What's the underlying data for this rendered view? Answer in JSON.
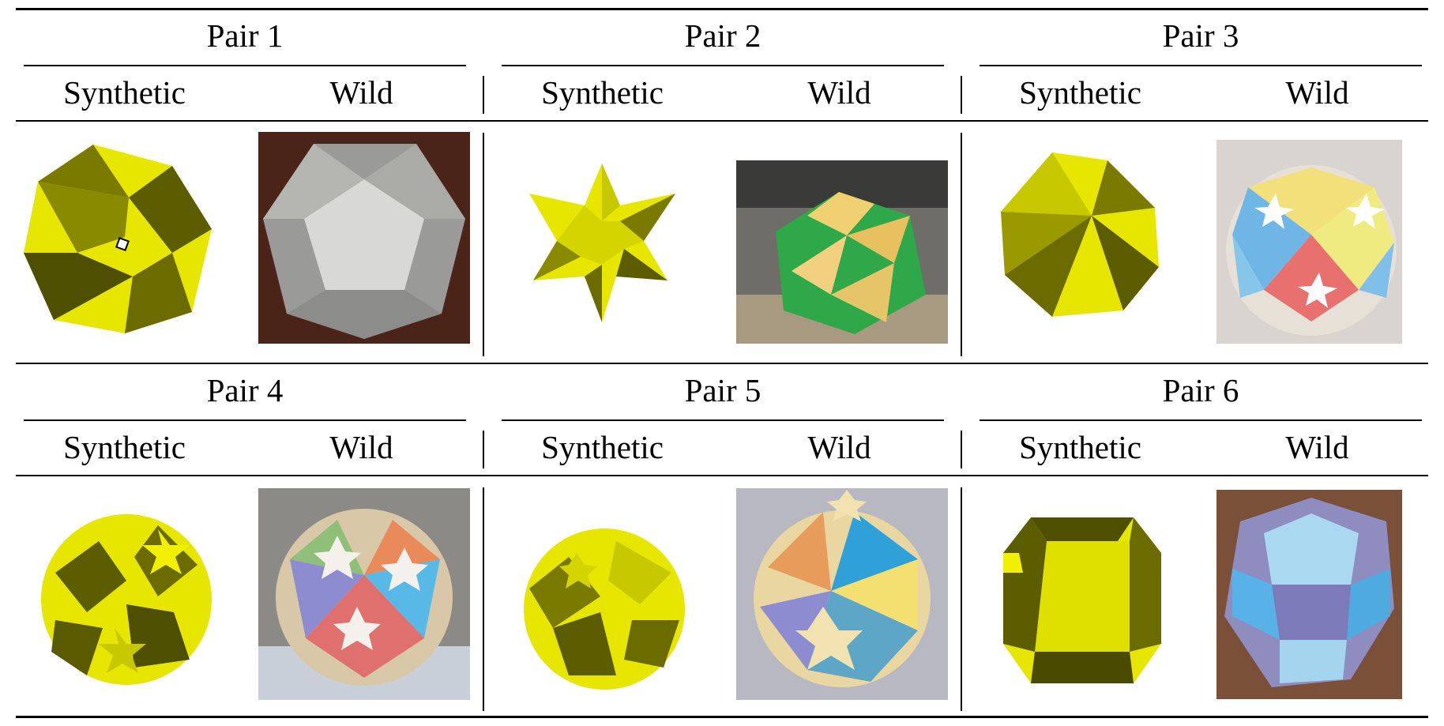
{
  "figure": {
    "pairs": [
      {
        "title": "Pair 1",
        "synthetic_label": "Synthetic",
        "wild_label": "Wild",
        "synthetic_shape": "yellow-dodecahedron-render",
        "wild_shape": "grey-dodecahedron-photo"
      },
      {
        "title": "Pair 2",
        "synthetic_label": "Synthetic",
        "wild_label": "Wild",
        "synthetic_shape": "yellow-stellated-octahedron-render",
        "wild_shape": "green-yellow-paper-polyhedron-photo"
      },
      {
        "title": "Pair 3",
        "synthetic_label": "Synthetic",
        "wild_label": "Wild",
        "synthetic_shape": "yellow-star-polyhedron-render",
        "wild_shape": "multicolor-paper-polyhedron-photo"
      },
      {
        "title": "Pair 4",
        "synthetic_label": "Synthetic",
        "wild_label": "Wild",
        "synthetic_shape": "yellow-star-polyhedron-render",
        "wild_shape": "multicolor-star-polyhedron-photo"
      },
      {
        "title": "Pair 5",
        "synthetic_label": "Synthetic",
        "wild_label": "Wild",
        "synthetic_shape": "yellow-star-polyhedron-render",
        "wild_shape": "multicolor-star-polyhedron-photo"
      },
      {
        "title": "Pair 6",
        "synthetic_label": "Synthetic",
        "wild_label": "Wild",
        "synthetic_shape": "yellow-rhombicuboctahedron-render",
        "wild_shape": "blue-paper-polyhedron-photo"
      }
    ],
    "colors": {
      "render_yellow": "#e6e600",
      "render_dark": "#5c5c00",
      "rule": "#000000"
    }
  }
}
